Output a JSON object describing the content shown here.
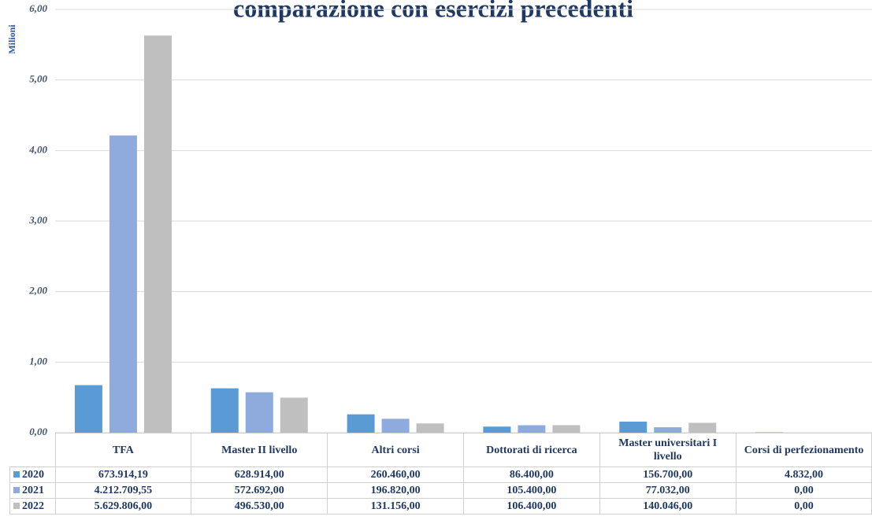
{
  "chart_data": {
    "type": "bar",
    "title": "comparazione con esercizi precedenti",
    "y_label": "Milioni",
    "categories": [
      "TFA",
      "Master II livello",
      "Altri corsi",
      "Dottorati di ricerca",
      "Master universitari I livello",
      "Corsi di perfezionamento"
    ],
    "series": [
      {
        "name": "2020",
        "color": "#5b9bd5",
        "values": [
          0.67391419,
          0.628914,
          0.26046,
          0.0864,
          0.1567,
          0.004832
        ],
        "value_labels": [
          "673.914,19",
          "628.914,00",
          "260.460,00",
          "86.400,00",
          "156.700,00",
          "4.832,00"
        ]
      },
      {
        "name": "2021",
        "color": "#8faadc",
        "values": [
          4.21270955,
          0.572692,
          0.19682,
          0.1054,
          0.077032,
          0
        ],
        "value_labels": [
          "4.212.709,55",
          "572.692,00",
          "196.820,00",
          "105.400,00",
          "77.032,00",
          "0,00"
        ]
      },
      {
        "name": "2022",
        "color": "#bfbfbf",
        "values": [
          5.629806,
          0.49653,
          0.131156,
          0.1064,
          0.140046,
          0
        ],
        "value_labels": [
          "5.629.806,00",
          "496.530,00",
          "131.156,00",
          "106.400,00",
          "140.046,00",
          "0,00"
        ]
      }
    ],
    "ylim": [
      0,
      6
    ],
    "yticks": [
      {
        "value": 0,
        "label": "0,00"
      },
      {
        "value": 1,
        "label": "1,00"
      },
      {
        "value": 2,
        "label": "2,00"
      },
      {
        "value": 3,
        "label": "3,00"
      },
      {
        "value": 4,
        "label": "4,00"
      },
      {
        "value": 5,
        "label": "5,00"
      },
      {
        "value": 6,
        "label": "6,00"
      }
    ],
    "grid": true
  }
}
